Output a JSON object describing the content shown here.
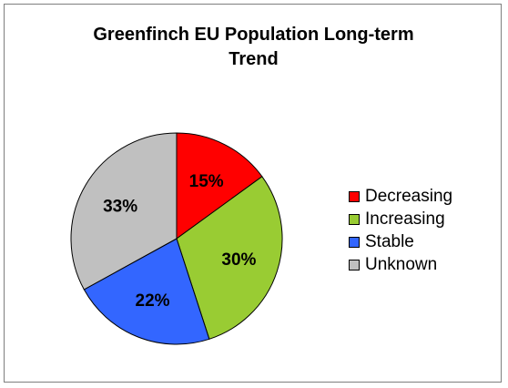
{
  "chart_data": {
    "type": "pie",
    "title": "Greenfinch EU Population Long-term Trend",
    "title_lines": [
      "Greenfinch EU Population Long-term",
      "Trend"
    ],
    "categories": [
      "Decreasing",
      "Increasing",
      "Stable",
      "Unknown"
    ],
    "values": [
      15,
      30,
      22,
      33
    ],
    "labels": [
      "15%",
      "30%",
      "22%",
      "33%"
    ],
    "colors": [
      "#ff0000",
      "#99cc33",
      "#3366ff",
      "#c0c0c0"
    ],
    "legend_position": "right"
  }
}
